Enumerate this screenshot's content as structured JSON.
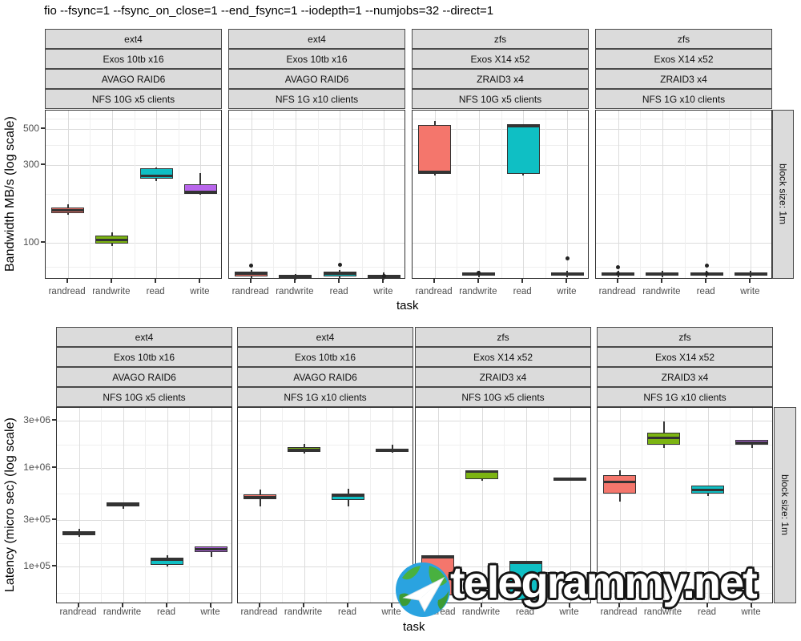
{
  "title": "fio --fsync=1 --fsync_on_close=1 --end_fsync=1 --iodepth=1 --numjobs=32 --direct=1",
  "watermark": "telegrammy.net",
  "x_axis_title": "task",
  "categories": [
    "randread",
    "randwrite",
    "read",
    "write"
  ],
  "task_colors": {
    "randread": "#F4766C",
    "randwrite": "#7CB412",
    "read": "#0FBFC4",
    "write": "#B966EC"
  },
  "theme": {
    "strip_bg": "#DBDBDB",
    "strip_border": "#4A4A4A",
    "panel_border": "#333333",
    "grid_major": "#DCDCDC",
    "grid_minor": "#EFEFEF",
    "box_line": "#333333",
    "tick_text": "#4D4D4D"
  },
  "right_strip_label": "block size: 1m",
  "chart_data": [
    {
      "id": "bandwidth",
      "type": "boxplot",
      "ylabel": "Bandwidth MB/s (log scale)",
      "xlabel": "task",
      "log_scale": true,
      "ylim": [
        59,
        650
      ],
      "yticks": [
        {
          "value": 500,
          "label": "500"
        },
        {
          "value": 300,
          "label": "300"
        },
        {
          "value": 100,
          "label": "100"
        }
      ],
      "minor_grid": [
        580,
        400,
        200,
        71
      ],
      "right_strip": "block size: 1m",
      "facets": [
        {
          "strips": [
            "ext4",
            "Exos 10tb x16",
            "AVAGO RAID6",
            "NFS 10G x5 clients"
          ],
          "boxes": [
            {
              "task": "randread",
              "lo": 148,
              "q1": 152,
              "med": 158,
              "q3": 165,
              "hi": 172,
              "outliers": []
            },
            {
              "task": "randwrite",
              "lo": 95,
              "q1": 98,
              "med": 104,
              "q3": 110,
              "hi": 116,
              "outliers": []
            },
            {
              "task": "read",
              "lo": 238,
              "q1": 246,
              "med": 257,
              "q3": 286,
              "hi": 290,
              "outliers": []
            },
            {
              "task": "write",
              "lo": 196,
              "q1": 199,
              "med": 205,
              "q3": 228,
              "hi": 268,
              "outliers": []
            }
          ]
        },
        {
          "strips": [
            "ext4",
            "Exos 10tb x16",
            "AVAGO RAID6",
            "NFS 1G x10 clients"
          ],
          "boxes": [
            {
              "task": "randread",
              "lo": 60,
              "q1": 62,
              "med": 64,
              "q3": 66,
              "hi": 68,
              "outliers": [
                72
              ]
            },
            {
              "task": "randwrite",
              "lo": 59,
              "q1": 60.5,
              "med": 62,
              "q3": 63,
              "hi": 64,
              "outliers": []
            },
            {
              "task": "read",
              "lo": 60,
              "q1": 62,
              "med": 64,
              "q3": 66,
              "hi": 68,
              "outliers": [
                73
              ]
            },
            {
              "task": "write",
              "lo": 59,
              "q1": 60.5,
              "med": 62,
              "q3": 63.5,
              "hi": 65,
              "outliers": [
                62
              ]
            }
          ]
        },
        {
          "strips": [
            "zfs",
            "Exos X14 x52",
            "ZRAID3 x4",
            "NFS 10G x5 clients"
          ],
          "boxes": [
            {
              "task": "randread",
              "lo": 260,
              "q1": 265,
              "med": 272,
              "q3": 528,
              "hi": 562,
              "outliers": []
            },
            {
              "task": "randwrite",
              "lo": 61,
              "q1": 62.5,
              "med": 64,
              "q3": 65.5,
              "hi": 67,
              "outliers": [
                65
              ]
            },
            {
              "task": "read",
              "lo": 260,
              "q1": 266,
              "med": 518,
              "q3": 536,
              "hi": 540,
              "outliers": []
            },
            {
              "task": "write",
              "lo": 61,
              "q1": 62.5,
              "med": 64,
              "q3": 65.5,
              "hi": 67,
              "outliers": [
                80
              ]
            }
          ]
        },
        {
          "strips": [
            "zfs",
            "Exos X14 x52",
            "ZRAID3 x4",
            "NFS 1G x10 clients"
          ],
          "boxes": [
            {
              "task": "randread",
              "lo": 61,
              "q1": 62.5,
              "med": 64,
              "q3": 65.5,
              "hi": 67,
              "outliers": [
                70,
                64
              ]
            },
            {
              "task": "randwrite",
              "lo": 61,
              "q1": 62.5,
              "med": 64,
              "q3": 65.5,
              "hi": 67,
              "outliers": []
            },
            {
              "task": "read",
              "lo": 61,
              "q1": 62.5,
              "med": 64,
              "q3": 65.5,
              "hi": 67,
              "outliers": [
                72,
                64
              ]
            },
            {
              "task": "write",
              "lo": 61,
              "q1": 62.5,
              "med": 64,
              "q3": 65.5,
              "hi": 67,
              "outliers": []
            }
          ]
        }
      ]
    },
    {
      "id": "latency",
      "type": "boxplot",
      "ylabel": "Latency (micro sec) (log scale)",
      "xlabel": "task",
      "log_scale": true,
      "ylim": [
        42000,
        4040000
      ],
      "yticks": [
        {
          "value": 3000000,
          "label": "3e+06"
        },
        {
          "value": 1000000,
          "label": "1e+06"
        },
        {
          "value": 300000,
          "label": "3e+05"
        },
        {
          "value": 100000,
          "label": "1e+05"
        }
      ],
      "minor_grid": [
        1730000,
        548000,
        173000,
        54800
      ],
      "right_strip": "block size: 1m",
      "facets": [
        {
          "strips": [
            "ext4",
            "Exos 10tb x16",
            "AVAGO RAID6",
            "NFS 10G x5 clients"
          ],
          "boxes": [
            {
              "task": "randread",
              "lo": 200000,
              "q1": 210000,
              "med": 220000,
              "q3": 230000,
              "hi": 240000,
              "outliers": []
            },
            {
              "task": "randwrite",
              "lo": 385000,
              "q1": 405000,
              "med": 430000,
              "q3": 445000,
              "hi": 450000,
              "outliers": []
            },
            {
              "task": "read",
              "lo": 100000,
              "q1": 104000,
              "med": 118000,
              "q3": 123000,
              "hi": 130000,
              "outliers": []
            },
            {
              "task": "write",
              "lo": 125000,
              "q1": 140000,
              "med": 150000,
              "q3": 162000,
              "hi": 165000,
              "outliers": []
            }
          ]
        },
        {
          "strips": [
            "ext4",
            "Exos 10tb x16",
            "AVAGO RAID6",
            "NFS 1G x10 clients"
          ],
          "boxes": [
            {
              "task": "randread",
              "lo": 410000,
              "q1": 480000,
              "med": 510000,
              "q3": 540000,
              "hi": 600000,
              "outliers": []
            },
            {
              "task": "randwrite",
              "lo": 1400000,
              "q1": 1450000,
              "med": 1520000,
              "q3": 1620000,
              "hi": 1750000,
              "outliers": []
            },
            {
              "task": "read",
              "lo": 410000,
              "q1": 470000,
              "med": 520000,
              "q3": 550000,
              "hi": 610000,
              "outliers": []
            },
            {
              "task": "write",
              "lo": 1420000,
              "q1": 1450000,
              "med": 1500000,
              "q3": 1570000,
              "hi": 1700000,
              "outliers": []
            }
          ]
        },
        {
          "strips": [
            "zfs",
            "Exos X14 x52",
            "ZRAID3 x4",
            "NFS 10G x5 clients"
          ],
          "boxes": [
            {
              "task": "randread",
              "lo": 52000,
              "q1": 52000,
              "med": 125000,
              "q3": 130000,
              "hi": 130000,
              "outliers": []
            },
            {
              "task": "randwrite",
              "lo": 740000,
              "q1": 770000,
              "med": 910000,
              "q3": 940000,
              "hi": 950000,
              "outliers": []
            },
            {
              "task": "read",
              "lo": 46000,
              "q1": 46000,
              "med": 110000,
              "q3": 114000,
              "hi": 114000,
              "outliers": []
            },
            {
              "task": "write",
              "lo": 750000,
              "q1": 765000,
              "med": 780000,
              "q3": 800000,
              "hi": 810000,
              "outliers": []
            }
          ]
        },
        {
          "strips": [
            "zfs",
            "Exos X14 x52",
            "ZRAID3 x4",
            "NFS 1G x10 clients"
          ],
          "boxes": [
            {
              "task": "randread",
              "lo": 460000,
              "q1": 550000,
              "med": 720000,
              "q3": 840000,
              "hi": 940000,
              "outliers": []
            },
            {
              "task": "randwrite",
              "lo": 1600000,
              "q1": 1700000,
              "med": 2000000,
              "q3": 2250000,
              "hi": 2950000,
              "outliers": []
            },
            {
              "task": "read",
              "lo": 520000,
              "q1": 550000,
              "med": 600000,
              "q3": 660000,
              "hi": 670000,
              "outliers": []
            },
            {
              "task": "write",
              "lo": 1600000,
              "q1": 1700000,
              "med": 1800000,
              "q3": 1920000,
              "hi": 1950000,
              "outliers": []
            }
          ]
        }
      ]
    }
  ]
}
